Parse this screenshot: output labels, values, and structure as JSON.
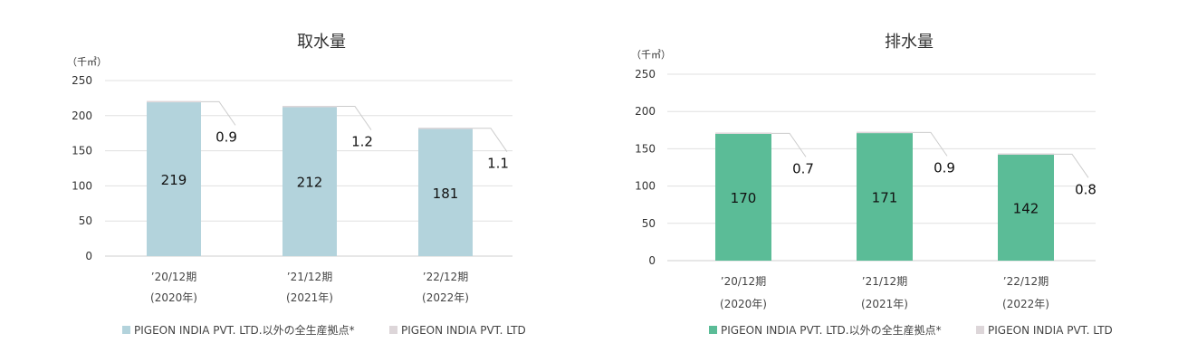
{
  "chart_data": [
    {
      "type": "bar",
      "stacked": true,
      "title": "取水量",
      "unit_label": "（千㎥）",
      "categories": [
        [
          "’20/12期",
          "(2020年)"
        ],
        [
          "’21/12期",
          "(2021年)"
        ],
        [
          "’22/12期",
          "(2022年)"
        ]
      ],
      "series": [
        {
          "name": "PIGEON INDIA PVT. LTD.以外の全生産拠点*",
          "values": [
            219,
            212,
            181
          ],
          "color": "#b3d3dc"
        },
        {
          "name": "PIGEON INDIA PVT. LTD",
          "values": [
            0.9,
            1.2,
            1.1
          ],
          "color": "#ddd6d9"
        }
      ],
      "ylim": [
        0,
        250
      ],
      "yticks": [
        0,
        50,
        100,
        150,
        200,
        250
      ],
      "grid": true,
      "legend_position": "bottom"
    },
    {
      "type": "bar",
      "stacked": true,
      "title": "排水量",
      "unit_label": "（千㎥）",
      "categories": [
        [
          "’20/12期",
          "(2020年)"
        ],
        [
          "’21/12期",
          "(2021年)"
        ],
        [
          "’22/12期",
          "(2022年)"
        ]
      ],
      "series": [
        {
          "name": "PIGEON INDIA PVT. LTD.以外の全生産拠点*",
          "values": [
            170,
            171,
            142
          ],
          "color": "#5bbc97"
        },
        {
          "name": "PIGEON INDIA PVT. LTD",
          "values": [
            0.7,
            0.9,
            0.8
          ],
          "color": "#ddd6d9"
        }
      ],
      "ylim": [
        0,
        250
      ],
      "yticks": [
        0,
        50,
        100,
        150,
        200,
        250
      ],
      "grid": true,
      "legend_position": "bottom"
    }
  ]
}
